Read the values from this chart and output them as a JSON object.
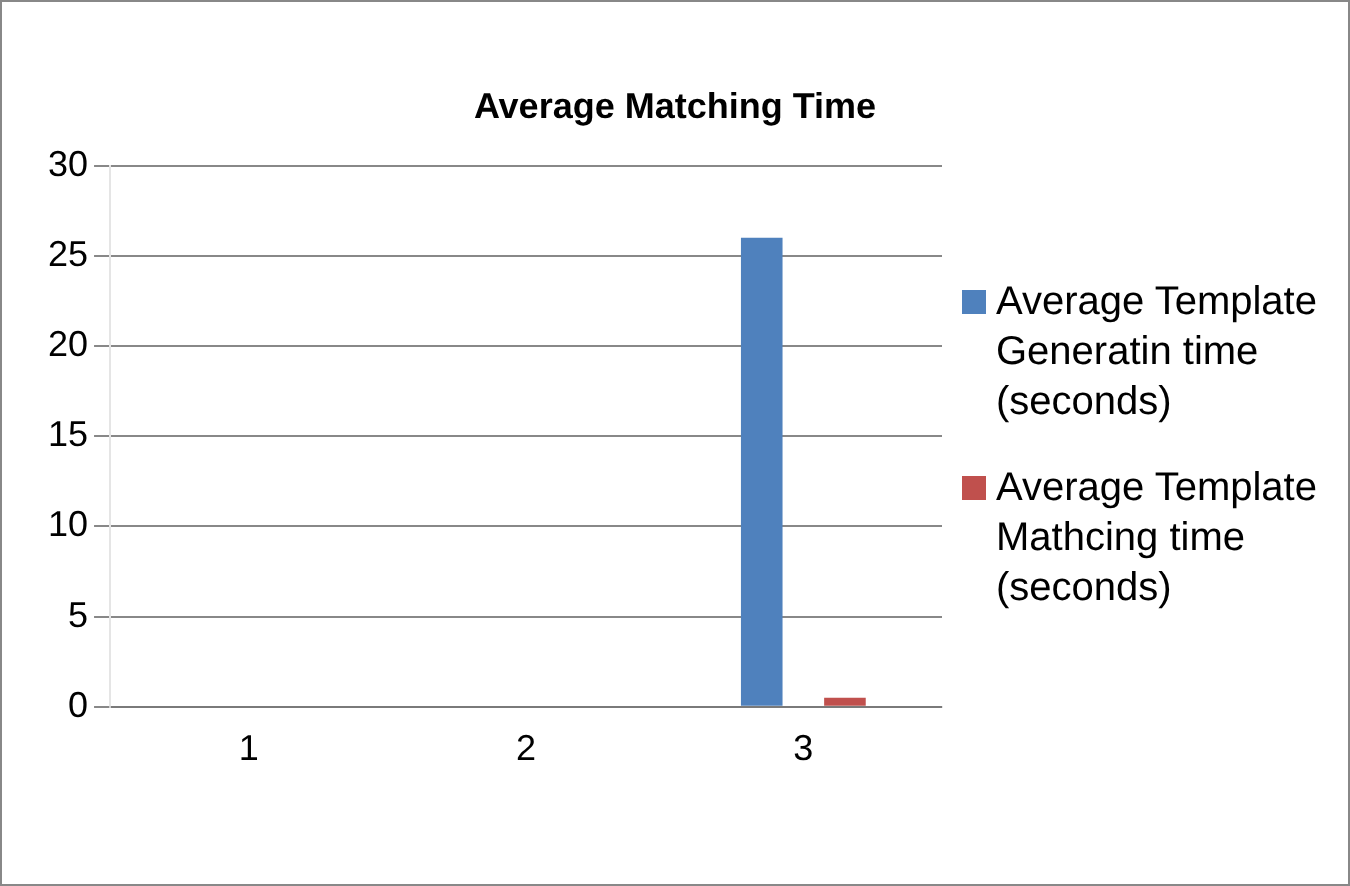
{
  "chart_data": {
    "type": "bar",
    "title": "Average Matching Time",
    "categories": [
      "1",
      "2",
      "3"
    ],
    "series": [
      {
        "name": "Average Template Generatin time (seconds)",
        "color": "#4f81bd",
        "values": [
          0,
          0,
          26
        ]
      },
      {
        "name": "Average Template Mathcing time (seconds)",
        "color": "#c0504d",
        "values": [
          0,
          0,
          0.5
        ]
      }
    ],
    "ylim": [
      0,
      30
    ],
    "yticks": [
      0,
      5,
      10,
      15,
      20,
      25,
      30
    ],
    "grid": "y",
    "legend": "right"
  }
}
